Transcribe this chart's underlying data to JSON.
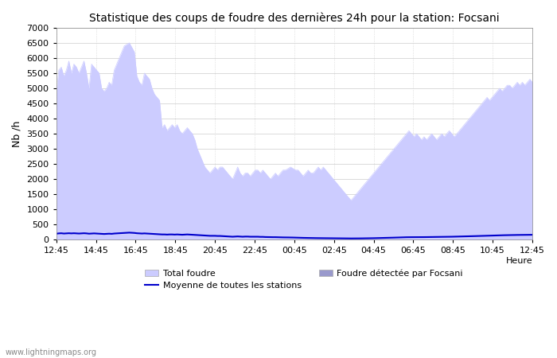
{
  "title": "Statistique des coups de foudre des dernières 24h pour la station: Focsani",
  "xlabel": "Heure",
  "ylabel": "Nb /h",
  "watermark": "www.lightningmaps.org",
  "x_ticks": [
    "12:45",
    "14:45",
    "16:45",
    "18:45",
    "20:45",
    "22:45",
    "00:45",
    "02:45",
    "04:45",
    "06:45",
    "08:45",
    "10:45",
    "12:45"
  ],
  "ylim": [
    0,
    7000
  ],
  "yticks": [
    0,
    500,
    1000,
    1500,
    2000,
    2500,
    3000,
    3500,
    4000,
    4500,
    5000,
    5500,
    6000,
    6500,
    7000
  ],
  "total_foudre_color": "#ccccff",
  "focsani_color": "#9999cc",
  "moyenne_color": "#0000cc",
  "background_color": "#ffffff",
  "plot_background": "#ffffff",
  "legend_items": [
    "Total foudre",
    "Moyenne de toutes les stations",
    "Foudre détectée par Focsani"
  ],
  "total_foudre": [
    4800,
    5600,
    5700,
    5400,
    5600,
    5900,
    5500,
    5800,
    5700,
    5500,
    5700,
    5900,
    5500,
    5000,
    5800,
    5700,
    5600,
    5500,
    5000,
    4900,
    5000,
    5200,
    5100,
    5600,
    5800,
    6000,
    6200,
    6400,
    6450,
    6500,
    6350,
    6200,
    5400,
    5200,
    5100,
    5500,
    5400,
    5300,
    5000,
    4800,
    4700,
    4600,
    3700,
    3800,
    3600,
    3700,
    3800,
    3700,
    3800,
    3600,
    3500,
    3600,
    3700,
    3600,
    3500,
    3300,
    3000,
    2800,
    2600,
    2400,
    2300,
    2200,
    2300,
    2400,
    2300,
    2400,
    2400,
    2300,
    2200,
    2100,
    2000,
    2200,
    2400,
    2200,
    2100,
    2200,
    2200,
    2100,
    2200,
    2300,
    2300,
    2200,
    2300,
    2200,
    2100,
    2000,
    2100,
    2200,
    2100,
    2200,
    2300,
    2300,
    2350,
    2400,
    2350,
    2300,
    2300,
    2200,
    2100,
    2200,
    2300,
    2200,
    2200,
    2300,
    2400,
    2300,
    2400,
    2300,
    2200,
    2100,
    2000,
    1900,
    1800,
    1700,
    1600,
    1500,
    1400,
    1300,
    1400,
    1500,
    1600,
    1700,
    1800,
    1900,
    2000,
    2100,
    2200,
    2300,
    2400,
    2500,
    2600,
    2700,
    2800,
    2900,
    3000,
    3100,
    3200,
    3300,
    3400,
    3500,
    3600,
    3500,
    3400,
    3500,
    3400,
    3300,
    3400,
    3300,
    3400,
    3500,
    3400,
    3300,
    3400,
    3500,
    3400,
    3500,
    3600,
    3500,
    3400,
    3500,
    3600,
    3700,
    3800,
    3900,
    4000,
    4100,
    4200,
    4300,
    4400,
    4500,
    4600,
    4700,
    4600,
    4700,
    4800,
    4900,
    5000,
    4900,
    5000,
    5100,
    5100,
    5000,
    5100,
    5200,
    5100,
    5200,
    5100,
    5200,
    5300,
    5200
  ],
  "focsani": [
    0,
    0,
    0,
    0,
    0,
    0,
    0,
    0,
    0,
    0,
    0,
    0,
    0,
    0,
    0,
    0,
    0,
    0,
    0,
    0,
    0,
    0,
    0,
    0,
    0,
    0,
    0,
    0,
    0,
    0,
    0,
    0,
    0,
    0,
    0,
    0,
    0,
    0,
    0,
    0,
    0,
    0,
    0,
    0,
    0,
    0,
    0,
    0,
    0,
    0,
    0,
    0,
    0,
    0,
    0,
    0,
    0,
    0,
    0,
    0,
    0,
    0,
    0,
    0,
    0,
    0,
    0,
    0,
    0,
    0,
    0,
    0,
    0,
    0,
    0,
    0,
    0,
    0,
    0,
    0,
    0,
    0,
    0,
    0,
    0,
    0,
    0,
    0,
    0,
    0,
    0,
    0,
    0,
    0,
    0,
    0,
    0,
    0,
    0,
    0,
    0,
    0,
    0,
    0,
    0,
    0,
    0,
    0,
    0,
    0,
    0,
    0,
    0,
    0,
    0,
    0,
    0,
    0,
    0,
    0,
    0,
    0,
    0,
    0,
    0,
    0,
    0,
    0,
    0,
    0,
    0,
    0,
    0,
    0,
    0,
    0,
    0,
    0,
    0,
    0,
    0,
    0,
    0,
    0,
    0,
    0,
    0,
    0,
    0,
    0,
    0,
    0,
    0,
    0,
    0,
    0,
    0,
    0,
    0,
    0,
    0,
    0,
    0,
    0,
    0,
    0,
    0,
    0,
    0,
    0,
    0,
    0,
    0,
    0,
    0,
    0,
    0,
    0,
    0,
    0,
    0,
    0,
    0,
    0,
    0,
    0,
    0,
    0,
    0,
    0
  ],
  "moyenne": [
    200,
    210,
    215,
    205,
    210,
    215,
    210,
    215,
    210,
    205,
    210,
    215,
    210,
    200,
    205,
    210,
    205,
    200,
    195,
    190,
    195,
    200,
    195,
    205,
    210,
    215,
    220,
    225,
    230,
    235,
    230,
    225,
    215,
    210,
    205,
    210,
    205,
    200,
    195,
    190,
    185,
    180,
    175,
    175,
    170,
    175,
    175,
    170,
    175,
    170,
    165,
    170,
    175,
    170,
    165,
    160,
    155,
    150,
    145,
    140,
    135,
    130,
    130,
    130,
    125,
    125,
    120,
    115,
    110,
    105,
    100,
    105,
    110,
    105,
    100,
    105,
    105,
    100,
    100,
    100,
    100,
    95,
    95,
    90,
    88,
    85,
    85,
    85,
    82,
    80,
    78,
    78,
    76,
    75,
    73,
    70,
    68,
    65,
    63,
    62,
    60,
    58,
    56,
    55,
    55,
    53,
    52,
    50,
    50,
    50,
    50,
    48,
    47,
    46,
    45,
    44,
    44,
    43,
    43,
    44,
    44,
    45,
    46,
    47,
    48,
    50,
    52,
    54,
    56,
    58,
    60,
    62,
    65,
    68,
    70,
    73,
    75,
    78,
    80,
    83,
    85,
    85,
    85,
    87,
    87,
    87,
    87,
    88,
    88,
    89,
    90,
    90,
    92,
    94,
    95,
    97,
    98,
    100,
    102,
    104,
    106,
    108,
    110,
    112,
    115,
    118,
    120,
    123,
    126,
    128,
    130,
    132,
    135,
    138,
    140,
    143,
    145,
    148,
    150,
    152,
    154,
    155,
    157,
    158,
    159,
    160,
    161,
    162,
    163,
    164
  ]
}
